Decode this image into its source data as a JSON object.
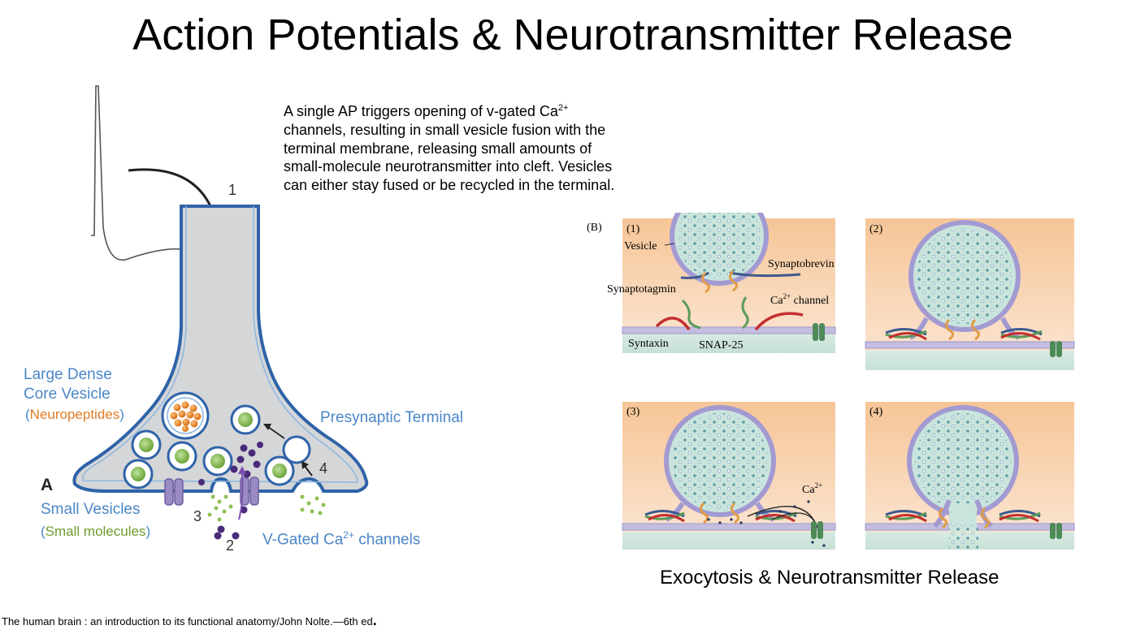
{
  "title": "Action Potentials & Neurotransmitter Release",
  "description": {
    "part1": "A single AP triggers opening of v-gated Ca",
    "part1_sup": "2+",
    "part2": "channels, resulting in small vesicle fusion with the terminal membrane, releasing small amounts of small-molecule neurotransmitter into cleft.  Vesicles can either stay fused or be recycled in the terminal."
  },
  "left_figure": {
    "panel_letter": "A",
    "step_numbers": [
      "1",
      "2",
      "3",
      "4"
    ],
    "ldcv_label_line1": "Large Dense",
    "ldcv_label_line2": "Core Vesicle",
    "ldcv_paren_open": "(",
    "ldcv_content": "Neuropeptides",
    "ldcv_paren_close": ")",
    "terminal_label": "Presynaptic Terminal",
    "small_vesicles_label": "Small Vesicles",
    "small_paren_open": "(",
    "small_content": "Small molecules",
    "small_paren_close": ")",
    "channels_label_a": "V-Gated Ca",
    "channels_label_sup": "2+",
    "channels_label_b": " channels"
  },
  "right_figure": {
    "panel_letter": "(B)",
    "panels": [
      "(1)",
      "(2)",
      "(3)",
      "(4)"
    ],
    "labels": {
      "vesicle": "Vesicle",
      "synaptobrevin": "Synaptobrevin",
      "synaptotagmin": "Synaptotagmin",
      "ca_channel_a": "Ca",
      "ca_channel_sup": "2+",
      "ca_channel_b": " channel",
      "syntaxin": "Syntaxin",
      "snap25": "SNAP-25",
      "ca_ion_a": "Ca",
      "ca_ion_sup": "2+"
    },
    "caption": "Exocytosis & Neurotransmitter Release"
  },
  "citation": "The human brain : an introduction to its functional anatomy/John Nolte.—6th ed",
  "citation_end": ".",
  "colors": {
    "label_blue": "#4a86c8",
    "neuropeptide_orange": "#e07b24",
    "small_molecule_green": "#6f9a2e",
    "terminal_fill": "#d4d6d8",
    "membrane_blue": "#3d6fb0"
  }
}
